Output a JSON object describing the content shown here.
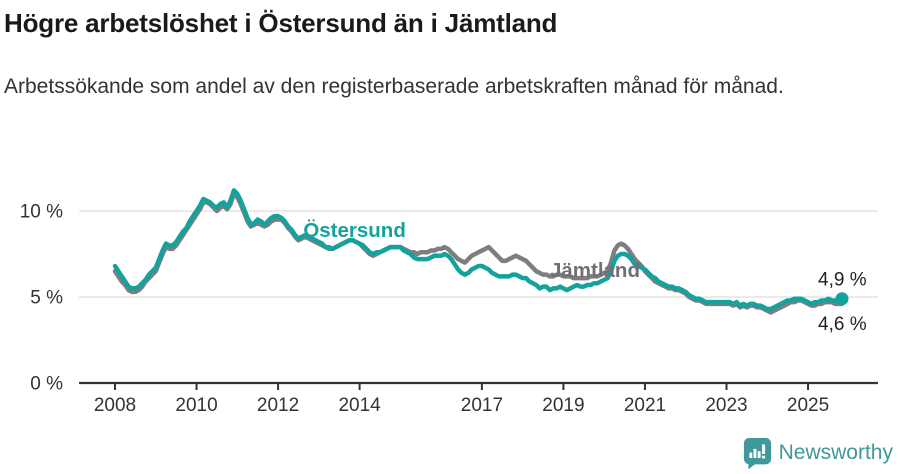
{
  "title": "Högre arbetslöshet i Östersund än i Jämtland",
  "subtitle": "Arbetssökande som andel av den registerbaserade arbetskraften månad för månad.",
  "branding": {
    "logo_text": "Newsworthy",
    "logo_icon": "newsworthy-chart-bubble-icon",
    "brand_color": "#3F989B"
  },
  "colors": {
    "ostersund": "#14A29C",
    "jamtland": "#7D7D82",
    "grid": "#DEDEDE",
    "axis": "#333333",
    "tick_text": "#333333",
    "end_label_text": "#222222"
  },
  "chart_data": {
    "type": "line",
    "frequency": "monthly",
    "x_start": {
      "year": 2008,
      "month": 1
    },
    "x_end": {
      "year": 2025,
      "month": 11
    },
    "x_tick_years": [
      2008,
      2010,
      2012,
      2014,
      2017,
      2019,
      2021,
      2023,
      2025
    ],
    "y_ticks": [
      0,
      5,
      10
    ],
    "y_tick_suffix": " %",
    "ylim": [
      0,
      12.3
    ],
    "grid": "horizontal",
    "legend_position": "inline-labels",
    "series": [
      {
        "name": "Jämtland",
        "color": "#7D7D82",
        "values": [
          6.5,
          6.2,
          5.9,
          5.7,
          5.4,
          5.3,
          5.3,
          5.4,
          5.6,
          5.9,
          6.1,
          6.3,
          6.5,
          7.0,
          7.5,
          7.9,
          7.8,
          7.8,
          8.0,
          8.3,
          8.6,
          8.9,
          9.2,
          9.5,
          9.8,
          10.1,
          10.5,
          10.5,
          10.4,
          10.2,
          10.0,
          10.2,
          10.3,
          10.1,
          10.4,
          11.0,
          10.8,
          10.4,
          9.9,
          9.4,
          9.1,
          9.2,
          9.3,
          9.2,
          9.1,
          9.2,
          9.4,
          9.5,
          9.5,
          9.5,
          9.3,
          9.0,
          8.8,
          8.5,
          8.3,
          8.4,
          8.5,
          8.4,
          8.3,
          8.2,
          8.1,
          8.0,
          7.9,
          7.8,
          7.8,
          7.9,
          8.0,
          8.1,
          8.2,
          8.3,
          8.3,
          8.2,
          8.1,
          7.9,
          7.7,
          7.5,
          7.4,
          7.5,
          7.6,
          7.7,
          7.8,
          7.9,
          7.9,
          7.9,
          7.9,
          7.8,
          7.7,
          7.6,
          7.6,
          7.5,
          7.6,
          7.6,
          7.6,
          7.7,
          7.7,
          7.8,
          7.8,
          7.9,
          7.8,
          7.6,
          7.4,
          7.2,
          7.1,
          7.0,
          7.2,
          7.4,
          7.5,
          7.6,
          7.7,
          7.8,
          7.9,
          7.7,
          7.5,
          7.3,
          7.1,
          7.1,
          7.2,
          7.3,
          7.4,
          7.3,
          7.2,
          7.1,
          6.9,
          6.7,
          6.5,
          6.4,
          6.3,
          6.3,
          6.2,
          6.2,
          6.3,
          6.3,
          6.2,
          6.2,
          6.2,
          6.1,
          6.1,
          6.1,
          6.1,
          6.1,
          6.2,
          6.2,
          6.2,
          6.3,
          6.4,
          6.5,
          7.0,
          7.7,
          8.0,
          8.1,
          8.0,
          7.8,
          7.5,
          7.2,
          7.0,
          6.8,
          6.5,
          6.3,
          6.1,
          5.9,
          5.8,
          5.7,
          5.6,
          5.5,
          5.5,
          5.4,
          5.4,
          5.3,
          5.2,
          5.0,
          4.9,
          4.8,
          4.8,
          4.7,
          4.6,
          4.6,
          4.6,
          4.6,
          4.6,
          4.6,
          4.6,
          4.6,
          4.5,
          4.6,
          4.4,
          4.5,
          4.4,
          4.5,
          4.5,
          4.4,
          4.4,
          4.3,
          4.2,
          4.1,
          4.2,
          4.3,
          4.4,
          4.5,
          4.6,
          4.7,
          4.7,
          4.8,
          4.8,
          4.7,
          4.6,
          4.5,
          4.5,
          4.6,
          4.6,
          4.7,
          4.7,
          4.7,
          4.6,
          4.6,
          4.6
        ]
      },
      {
        "name": "Östersund",
        "color": "#14A29C",
        "end_dot": true,
        "values": [
          6.8,
          6.5,
          6.2,
          5.9,
          5.6,
          5.5,
          5.5,
          5.6,
          5.8,
          6.0,
          6.3,
          6.5,
          6.7,
          7.2,
          7.7,
          8.1,
          8.0,
          8.0,
          8.2,
          8.5,
          8.8,
          9.0,
          9.4,
          9.7,
          10.0,
          10.3,
          10.7,
          10.6,
          10.5,
          10.3,
          10.2,
          10.4,
          10.5,
          10.2,
          10.6,
          11.2,
          11.0,
          10.6,
          10.1,
          9.6,
          9.2,
          9.3,
          9.5,
          9.4,
          9.2,
          9.4,
          9.6,
          9.7,
          9.7,
          9.6,
          9.4,
          9.1,
          8.9,
          8.6,
          8.4,
          8.5,
          8.6,
          8.5,
          8.4,
          8.3,
          8.2,
          8.1,
          7.9,
          7.9,
          7.8,
          7.9,
          8.0,
          8.1,
          8.2,
          8.3,
          8.3,
          8.2,
          8.1,
          8.0,
          7.8,
          7.6,
          7.5,
          7.6,
          7.6,
          7.7,
          7.8,
          7.9,
          7.9,
          7.9,
          7.9,
          7.7,
          7.6,
          7.5,
          7.3,
          7.2,
          7.2,
          7.2,
          7.2,
          7.3,
          7.4,
          7.4,
          7.4,
          7.5,
          7.4,
          7.2,
          6.9,
          6.6,
          6.4,
          6.3,
          6.4,
          6.6,
          6.7,
          6.8,
          6.8,
          6.7,
          6.6,
          6.4,
          6.3,
          6.2,
          6.2,
          6.2,
          6.2,
          6.3,
          6.3,
          6.2,
          6.1,
          6.1,
          5.9,
          5.8,
          5.7,
          5.5,
          5.6,
          5.6,
          5.4,
          5.5,
          5.5,
          5.6,
          5.5,
          5.4,
          5.5,
          5.6,
          5.7,
          5.6,
          5.6,
          5.7,
          5.7,
          5.8,
          5.8,
          5.9,
          6.0,
          6.1,
          6.5,
          7.1,
          7.4,
          7.5,
          7.5,
          7.4,
          7.2,
          6.9,
          6.8,
          6.7,
          6.6,
          6.4,
          6.2,
          6.1,
          5.9,
          5.8,
          5.7,
          5.6,
          5.6,
          5.5,
          5.5,
          5.4,
          5.3,
          5.1,
          5.0,
          4.9,
          4.9,
          4.8,
          4.7,
          4.7,
          4.7,
          4.7,
          4.7,
          4.7,
          4.7,
          4.7,
          4.6,
          4.7,
          4.5,
          4.6,
          4.5,
          4.6,
          4.6,
          4.5,
          4.5,
          4.4,
          4.3,
          4.3,
          4.4,
          4.5,
          4.6,
          4.7,
          4.8,
          4.8,
          4.9,
          4.9,
          4.9,
          4.8,
          4.7,
          4.6,
          4.7,
          4.7,
          4.8,
          4.8,
          4.9,
          4.8,
          4.8,
          4.8,
          4.9
        ]
      }
    ],
    "series_labels": [
      {
        "text": "Östersund",
        "color": "#14A29C",
        "x_year": 2012.62,
        "y_pct": 8.5
      },
      {
        "text": "Jämtland",
        "color": "#6F6F74",
        "x_year": 2018.67,
        "y_pct": 6.15
      }
    ],
    "end_labels": [
      {
        "text": "4,9 %",
        "series": "Östersund",
        "position": "above"
      },
      {
        "text": "4,6 %",
        "series": "Jämtland",
        "position": "below"
      }
    ]
  }
}
